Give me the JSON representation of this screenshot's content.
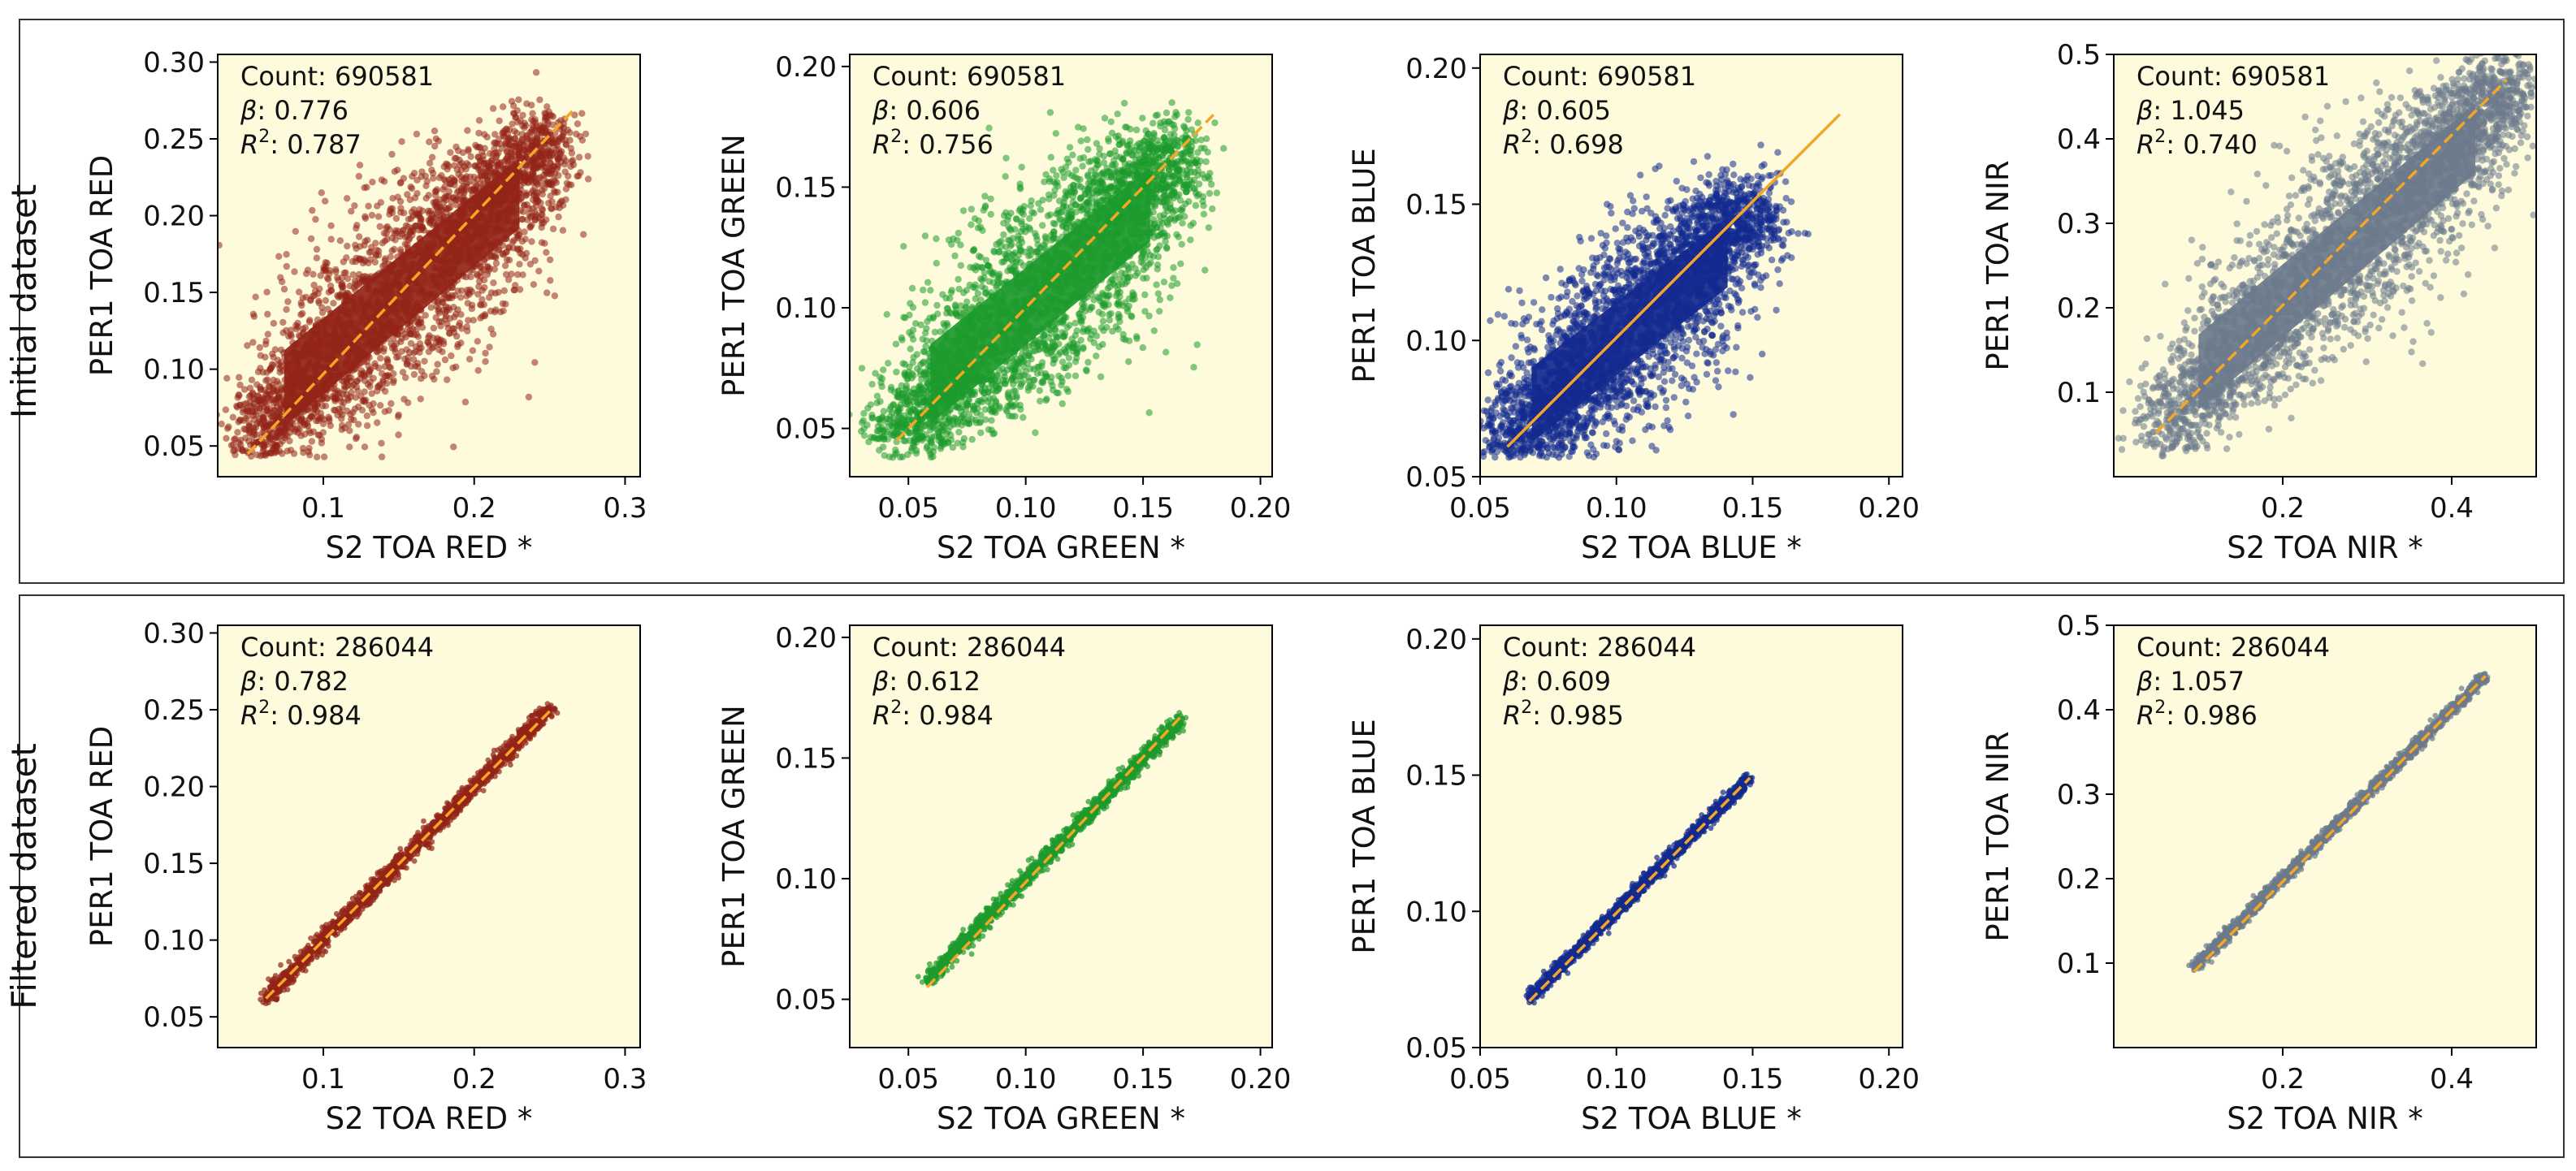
{
  "colors": {
    "background": "#fdfbdb",
    "fit_line": "#f6a623",
    "red": "#932417",
    "green": "#1c9a2c",
    "blue": "#13298f",
    "nir": "#6b7a8c"
  },
  "chart_data": [
    {
      "type": "scatter",
      "row": "initial",
      "band": "red",
      "row_label": "Initial dataset",
      "xlabel": "S2 TOA RED *",
      "ylabel": "PER1 TOA RED",
      "xlim": [
        0.03,
        0.31
      ],
      "ylim": [
        0.03,
        0.305
      ],
      "xticks": [
        "0.1",
        "0.2",
        "0.3"
      ],
      "xtick_values": [
        0.1,
        0.2,
        0.3
      ],
      "yticks": [
        "0.05",
        "0.10",
        "0.15",
        "0.20",
        "0.25",
        "0.30"
      ],
      "ytick_values": [
        0.05,
        0.1,
        0.15,
        0.2,
        0.25,
        0.3
      ],
      "count_label": "Count: 690581",
      "beta_label": ": 0.776",
      "r2_label": ": 0.787",
      "count": 690581,
      "beta": 0.776,
      "r2": 0.787,
      "fit_line": [
        [
          0.05,
          0.045
        ],
        [
          0.265,
          0.268
        ]
      ],
      "cloud": {
        "xmin": 0.05,
        "xmax": 0.25,
        "slope": 1.0,
        "intercept": 0.0,
        "spread": 0.045,
        "dispersion": "wide"
      }
    },
    {
      "type": "scatter",
      "row": "initial",
      "band": "green",
      "row_label": "Initial dataset",
      "xlabel": "S2 TOA GREEN *",
      "ylabel": "PER1 TOA GREEN",
      "xlim": [
        0.025,
        0.205
      ],
      "ylim": [
        0.03,
        0.205
      ],
      "xticks": [
        "0.05",
        "0.10",
        "0.15",
        "0.20"
      ],
      "xtick_values": [
        0.05,
        0.1,
        0.15,
        0.2
      ],
      "yticks": [
        "0.05",
        "0.10",
        "0.15",
        "0.20"
      ],
      "ytick_values": [
        0.05,
        0.1,
        0.15,
        0.2
      ],
      "count_label": "Count: 690581",
      "beta_label": ": 0.606",
      "r2_label": ": 0.756",
      "count": 690581,
      "beta": 0.606,
      "r2": 0.756,
      "fit_line": [
        [
          0.045,
          0.045
        ],
        [
          0.18,
          0.18
        ]
      ],
      "cloud": {
        "xmin": 0.045,
        "xmax": 0.165,
        "slope": 1.0,
        "intercept": 0.0,
        "spread": 0.03,
        "dispersion": "wide"
      }
    },
    {
      "type": "scatter",
      "row": "initial",
      "band": "blue",
      "row_label": "Initial dataset",
      "xlabel": "S2 TOA BLUE *",
      "ylabel": "PER1 TOA BLUE",
      "xlim": [
        0.05,
        0.205
      ],
      "ylim": [
        0.05,
        0.205
      ],
      "xticks": [
        "0.05",
        "0.10",
        "0.15",
        "0.20"
      ],
      "xtick_values": [
        0.05,
        0.1,
        0.15,
        0.2
      ],
      "yticks": [
        "0.05",
        "0.10",
        "0.15",
        "0.20"
      ],
      "ytick_values": [
        0.05,
        0.1,
        0.15,
        0.2
      ],
      "count_label": "Count: 690581",
      "beta_label": ": 0.605",
      "r2_label": ": 0.698",
      "count": 690581,
      "beta": 0.605,
      "r2": 0.698,
      "fit_line": [
        [
          0.06,
          0.061
        ],
        [
          0.182,
          0.183
        ]
      ],
      "cloud": {
        "xmin": 0.058,
        "xmax": 0.15,
        "slope": 1.0,
        "intercept": 0.0,
        "spread": 0.025,
        "dispersion": "wide"
      }
    },
    {
      "type": "scatter",
      "row": "initial",
      "band": "nir",
      "row_label": "Initial dataset",
      "xlabel": "S2 TOA NIR *",
      "ylabel": "PER1 TOA NIR",
      "xlim": [
        0.0,
        0.5
      ],
      "ylim": [
        0.0,
        0.5
      ],
      "xticks": [
        "0.2",
        "0.4"
      ],
      "xtick_values": [
        0.2,
        0.4
      ],
      "yticks": [
        "0.1",
        "0.2",
        "0.3",
        "0.4",
        "0.5"
      ],
      "ytick_values": [
        0.1,
        0.2,
        0.3,
        0.4,
        0.5
      ],
      "count_label": "Count: 690581",
      "beta_label": ": 1.045",
      "r2_label": ": 0.740",
      "count": 690581,
      "beta": 1.045,
      "r2": 0.74,
      "fit_line": [
        [
          0.05,
          0.052
        ],
        [
          0.465,
          0.47
        ]
      ],
      "cloud": {
        "xmin": 0.05,
        "xmax": 0.47,
        "slope": 1.0,
        "intercept": 0.0,
        "spread": 0.08,
        "dispersion": "wide"
      }
    },
    {
      "type": "scatter",
      "row": "filtered",
      "band": "red",
      "row_label": "Filtered dataset",
      "xlabel": "S2 TOA RED *",
      "ylabel": "PER1 TOA RED",
      "xlim": [
        0.03,
        0.31
      ],
      "ylim": [
        0.03,
        0.305
      ],
      "xticks": [
        "0.1",
        "0.2",
        "0.3"
      ],
      "xtick_values": [
        0.1,
        0.2,
        0.3
      ],
      "yticks": [
        "0.05",
        "0.10",
        "0.15",
        "0.20",
        "0.25",
        "0.30"
      ],
      "ytick_values": [
        0.05,
        0.1,
        0.15,
        0.2,
        0.25,
        0.3
      ],
      "count_label": "Count: 286044",
      "beta_label": ": 0.782",
      "r2_label": ": 0.984",
      "count": 286044,
      "beta": 0.782,
      "r2": 0.984,
      "fit_line": [
        [
          0.062,
          0.062
        ],
        [
          0.25,
          0.249
        ]
      ],
      "cloud": {
        "xmin": 0.062,
        "xmax": 0.25,
        "slope": 1.0,
        "intercept": 0.0,
        "spread": 0.007,
        "dispersion": "tight"
      }
    },
    {
      "type": "scatter",
      "row": "filtered",
      "band": "green",
      "row_label": "Filtered dataset",
      "xlabel": "S2 TOA GREEN *",
      "ylabel": "PER1 TOA GREEN",
      "xlim": [
        0.025,
        0.205
      ],
      "ylim": [
        0.03,
        0.205
      ],
      "xticks": [
        "0.05",
        "0.10",
        "0.15",
        "0.20"
      ],
      "xtick_values": [
        0.05,
        0.1,
        0.15,
        0.2
      ],
      "yticks": [
        "0.05",
        "0.10",
        "0.15",
        "0.20"
      ],
      "ytick_values": [
        0.05,
        0.1,
        0.15,
        0.2
      ],
      "count_label": "Count: 286044",
      "beta_label": ": 0.612",
      "r2_label": ": 0.984",
      "count": 286044,
      "beta": 0.612,
      "r2": 0.984,
      "fit_line": [
        [
          0.058,
          0.055
        ],
        [
          0.166,
          0.167
        ]
      ],
      "cloud": {
        "xmin": 0.058,
        "xmax": 0.166,
        "slope": 1.0,
        "intercept": 0.0,
        "spread": 0.004,
        "dispersion": "tight"
      }
    },
    {
      "type": "scatter",
      "row": "filtered",
      "band": "blue",
      "row_label": "Filtered dataset",
      "xlabel": "S2 TOA BLUE *",
      "ylabel": "PER1 TOA BLUE",
      "xlim": [
        0.05,
        0.205
      ],
      "ylim": [
        0.05,
        0.205
      ],
      "xticks": [
        "0.05",
        "0.10",
        "0.15",
        "0.20"
      ],
      "xtick_values": [
        0.05,
        0.1,
        0.15,
        0.2
      ],
      "yticks": [
        "0.05",
        "0.10",
        "0.15",
        "0.20"
      ],
      "ytick_values": [
        0.05,
        0.1,
        0.15,
        0.2
      ],
      "count_label": "Count: 286044",
      "beta_label": ": 0.609",
      "r2_label": ": 0.985",
      "count": 286044,
      "beta": 0.609,
      "r2": 0.985,
      "fit_line": [
        [
          0.068,
          0.067
        ],
        [
          0.149,
          0.149
        ]
      ],
      "cloud": {
        "xmin": 0.068,
        "xmax": 0.149,
        "slope": 1.0,
        "intercept": 0.0,
        "spread": 0.003,
        "dispersion": "tight"
      }
    },
    {
      "type": "scatter",
      "row": "filtered",
      "band": "nir",
      "row_label": "Filtered dataset",
      "xlabel": "S2 TOA NIR *",
      "ylabel": "PER1 TOA NIR",
      "xlim": [
        0.0,
        0.5
      ],
      "ylim": [
        0.0,
        0.5
      ],
      "xticks": [
        "0.2",
        "0.4"
      ],
      "xtick_values": [
        0.2,
        0.4
      ],
      "yticks": [
        "0.1",
        "0.2",
        "0.3",
        "0.4",
        "0.5"
      ],
      "ytick_values": [
        0.1,
        0.2,
        0.3,
        0.4,
        0.5
      ],
      "count_label": "Count: 286044",
      "beta_label": ": 1.057",
      "r2_label": ": 0.986",
      "count": 286044,
      "beta": 1.057,
      "r2": 0.986,
      "fit_line": [
        [
          0.095,
          0.09
        ],
        [
          0.44,
          0.44
        ]
      ],
      "cloud": {
        "xmin": 0.095,
        "xmax": 0.44,
        "slope": 1.0,
        "intercept": 0.0,
        "spread": 0.009,
        "dispersion": "tight"
      }
    }
  ]
}
